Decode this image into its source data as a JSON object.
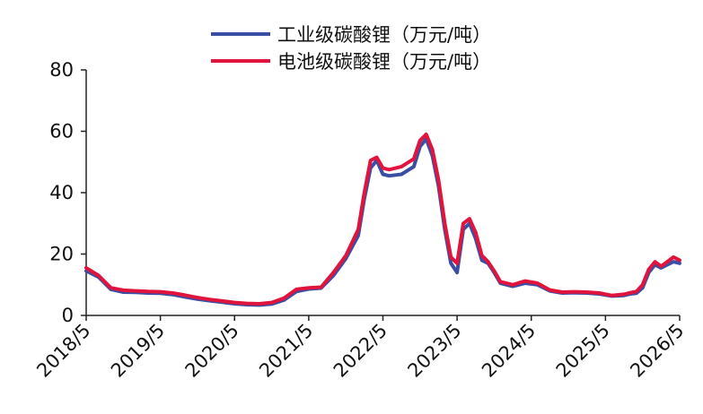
{
  "chart_data": {
    "type": "line",
    "title": "",
    "xlabel": "",
    "ylabel": "",
    "ylim": [
      0,
      80
    ],
    "yticks": [
      0,
      20,
      40,
      60,
      80
    ],
    "xlim": [
      "2018-05",
      "2026-05"
    ],
    "xtick_labels": [
      "2018/5",
      "2019/5",
      "2020/5",
      "2021/5",
      "2022/5",
      "2023/5",
      "2024/5",
      "2025/5",
      "2026/5"
    ],
    "grid": false,
    "legend_position": "top",
    "series": [
      {
        "name": "工业级碳酸锂（万元/吨）",
        "color": "#3a4fa3",
        "points": [
          [
            "2018-05",
            14.5
          ],
          [
            "2018-07",
            12.5
          ],
          [
            "2018-09",
            8.5
          ],
          [
            "2018-11",
            7.6
          ],
          [
            "2019-01",
            7.5
          ],
          [
            "2019-03",
            7.3
          ],
          [
            "2019-05",
            7.2
          ],
          [
            "2019-07",
            6.8
          ],
          [
            "2019-09",
            6.0
          ],
          [
            "2019-11",
            5.3
          ],
          [
            "2020-01",
            4.8
          ],
          [
            "2020-03",
            4.3
          ],
          [
            "2020-05",
            3.8
          ],
          [
            "2020-07",
            3.5
          ],
          [
            "2020-09",
            3.4
          ],
          [
            "2020-11",
            3.7
          ],
          [
            "2021-01",
            5.0
          ],
          [
            "2021-03",
            7.8
          ],
          [
            "2021-05",
            8.6
          ],
          [
            "2021-07",
            8.9
          ],
          [
            "2021-09",
            13.0
          ],
          [
            "2021-11",
            18.5
          ],
          [
            "2022-01",
            26.0
          ],
          [
            "2022-02",
            38.0
          ],
          [
            "2022-03",
            48.0
          ],
          [
            "2022-04",
            50.5
          ],
          [
            "2022-05",
            46.0
          ],
          [
            "2022-06",
            45.5
          ],
          [
            "2022-08",
            46.0
          ],
          [
            "2022-10",
            48.5
          ],
          [
            "2022-11",
            55.0
          ],
          [
            "2022-12",
            57.5
          ],
          [
            "2023-01",
            52.0
          ],
          [
            "2023-02",
            42.0
          ],
          [
            "2023-03",
            28.0
          ],
          [
            "2023-04",
            17.0
          ],
          [
            "2023-05",
            14.0
          ],
          [
            "2023-06",
            28.0
          ],
          [
            "2023-07",
            30.0
          ],
          [
            "2023-08",
            25.0
          ],
          [
            "2023-09",
            18.0
          ],
          [
            "2023-10",
            17.0
          ],
          [
            "2023-11",
            14.0
          ],
          [
            "2023-12",
            10.5
          ],
          [
            "2024-02",
            9.5
          ],
          [
            "2024-04",
            10.5
          ],
          [
            "2024-06",
            10.0
          ],
          [
            "2024-08",
            8.0
          ],
          [
            "2024-10",
            7.3
          ],
          [
            "2024-12",
            7.4
          ],
          [
            "2025-02",
            7.3
          ],
          [
            "2025-04",
            7.0
          ],
          [
            "2025-06",
            6.3
          ],
          [
            "2025-08",
            6.5
          ],
          [
            "2025-09",
            7.0
          ],
          [
            "2025-10",
            7.2
          ],
          [
            "2025-11",
            9.0
          ],
          [
            "2025-12",
            14.0
          ],
          [
            "2026-01",
            16.5
          ],
          [
            "2026-02",
            15.5
          ],
          [
            "2026-03",
            16.5
          ],
          [
            "2026-04",
            17.5
          ],
          [
            "2026-05",
            17.0
          ]
        ]
      },
      {
        "name": "电池级碳酸锂（万元/吨）",
        "color": "#e0143c",
        "points": [
          [
            "2018-05",
            15.5
          ],
          [
            "2018-07",
            13.0
          ],
          [
            "2018-09",
            9.0
          ],
          [
            "2018-11",
            8.2
          ],
          [
            "2019-01",
            8.0
          ],
          [
            "2019-03",
            7.8
          ],
          [
            "2019-05",
            7.7
          ],
          [
            "2019-07",
            7.3
          ],
          [
            "2019-09",
            6.6
          ],
          [
            "2019-11",
            5.8
          ],
          [
            "2020-01",
            5.2
          ],
          [
            "2020-03",
            4.7
          ],
          [
            "2020-05",
            4.2
          ],
          [
            "2020-07",
            3.9
          ],
          [
            "2020-09",
            3.8
          ],
          [
            "2020-11",
            4.2
          ],
          [
            "2021-01",
            5.6
          ],
          [
            "2021-03",
            8.5
          ],
          [
            "2021-05",
            9.0
          ],
          [
            "2021-07",
            9.2
          ],
          [
            "2021-09",
            14.0
          ],
          [
            "2021-11",
            19.5
          ],
          [
            "2022-01",
            28.0
          ],
          [
            "2022-02",
            40.0
          ],
          [
            "2022-03",
            50.5
          ],
          [
            "2022-04",
            51.5
          ],
          [
            "2022-05",
            48.0
          ],
          [
            "2022-06",
            47.5
          ],
          [
            "2022-08",
            48.5
          ],
          [
            "2022-10",
            51.0
          ],
          [
            "2022-11",
            57.0
          ],
          [
            "2022-12",
            59.0
          ],
          [
            "2023-01",
            54.0
          ],
          [
            "2023-02",
            44.0
          ],
          [
            "2023-03",
            30.0
          ],
          [
            "2023-04",
            19.0
          ],
          [
            "2023-05",
            17.0
          ],
          [
            "2023-06",
            30.0
          ],
          [
            "2023-07",
            31.5
          ],
          [
            "2023-08",
            27.0
          ],
          [
            "2023-09",
            19.5
          ],
          [
            "2023-10",
            17.5
          ],
          [
            "2023-11",
            14.5
          ],
          [
            "2023-12",
            11.0
          ],
          [
            "2024-02",
            10.0
          ],
          [
            "2024-04",
            11.2
          ],
          [
            "2024-06",
            10.5
          ],
          [
            "2024-08",
            8.3
          ],
          [
            "2024-10",
            7.6
          ],
          [
            "2024-12",
            7.7
          ],
          [
            "2025-02",
            7.6
          ],
          [
            "2025-04",
            7.3
          ],
          [
            "2025-06",
            6.5
          ],
          [
            "2025-08",
            6.9
          ],
          [
            "2025-09",
            7.4
          ],
          [
            "2025-10",
            7.8
          ],
          [
            "2025-11",
            10.0
          ],
          [
            "2025-12",
            15.0
          ],
          [
            "2026-01",
            17.5
          ],
          [
            "2026-02",
            16.0
          ],
          [
            "2026-03",
            17.5
          ],
          [
            "2026-04",
            19.0
          ],
          [
            "2026-05",
            18.0
          ]
        ]
      }
    ]
  }
}
